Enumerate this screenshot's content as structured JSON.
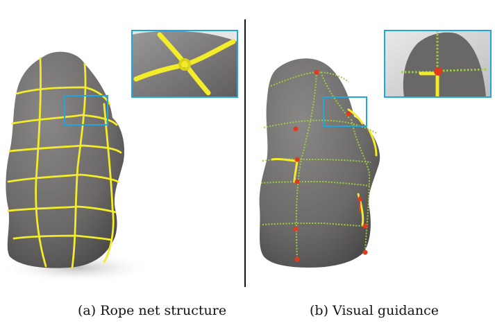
{
  "figure": {
    "panels": [
      {
        "id": "a",
        "caption": "(a) Rope net structure"
      },
      {
        "id": "b",
        "caption": "(b) Visual guidance"
      }
    ]
  }
}
